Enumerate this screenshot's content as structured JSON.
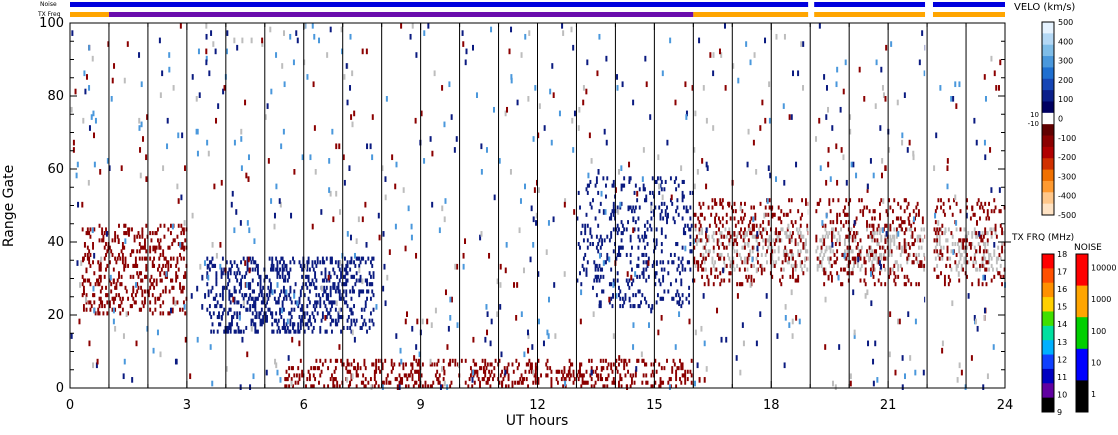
{
  "header": {
    "noise_label": "Noise",
    "txfrq_label": "TX Freq"
  },
  "chart_data": {
    "type": "heatmap",
    "xlabel": "UT hours",
    "ylabel": "Range Gate",
    "xlim": [
      0,
      24
    ],
    "ylim": [
      0,
      100
    ],
    "x_ticks": [
      "0",
      "3",
      "6",
      "9",
      "12",
      "15",
      "18",
      "21",
      "24"
    ],
    "y_ticks": [
      "0",
      "20",
      "40",
      "60",
      "80",
      "100"
    ],
    "vertical_lines_ut": [
      1,
      2,
      3,
      4,
      5,
      6,
      7,
      8,
      9,
      10,
      11,
      12,
      13,
      14,
      15,
      16,
      17,
      18,
      19,
      20,
      21,
      22,
      23
    ],
    "data_gaps_ut": [
      [
        18.95,
        19.1
      ],
      [
        21.95,
        22.15
      ]
    ],
    "scatter_regions": [
      {
        "name": "blue-blob-early",
        "color": "#0a1a80",
        "ut": [
          3.5,
          7.8
        ],
        "gates": [
          15,
          36
        ],
        "density": 0.7
      },
      {
        "name": "red-cluster-early",
        "color": "#8b0000",
        "ut": [
          0.3,
          3.0
        ],
        "gates": [
          20,
          45
        ],
        "density": 0.5
      },
      {
        "name": "red-band-bottom",
        "color": "#8b0000",
        "ut": [
          5.5,
          16.0
        ],
        "gates": [
          0,
          8
        ],
        "density": 0.55
      },
      {
        "name": "blue-arc-mid",
        "color": "#0a1a80",
        "ut": [
          13.0,
          16.0
        ],
        "gates": [
          22,
          58
        ],
        "density": 0.35
      },
      {
        "name": "gray-late",
        "color": "#bdbdbd",
        "ut": [
          16.0,
          24.0
        ],
        "gates": [
          32,
          44
        ],
        "density": 0.5
      },
      {
        "name": "red-late",
        "color": "#8b0000",
        "ut": [
          16.0,
          24.0
        ],
        "gates": [
          28,
          52
        ],
        "density": 0.35
      }
    ],
    "velocity_colorbar": {
      "title": "VELO (km/s)",
      "ticks": [
        "500",
        "400",
        "300",
        "200",
        "100",
        "0",
        "-100",
        "-200",
        "-300",
        "-400",
        "-500"
      ],
      "gray_labels": [
        "10",
        "-10"
      ],
      "colors": [
        "#e6f3ff",
        "#b4d8f5",
        "#7fbde8",
        "#4a98dc",
        "#1f6fd0",
        "#1646b5",
        "#0a1f8a",
        "#000060",
        "#ffffff",
        "#600000",
        "#8b0000",
        "#b00000",
        "#d03000",
        "#f07000",
        "#ff9a30",
        "#ffc78a",
        "#ffe3c4"
      ]
    },
    "txfrq_colorbar": {
      "title": "TX FRQ (MHz)",
      "ticks": [
        "18",
        "17",
        "16",
        "15",
        "14",
        "13",
        "12",
        "11",
        "10",
        "9"
      ],
      "colors": [
        "#ff0000",
        "#ff5000",
        "#ff9000",
        "#ffd000",
        "#40e000",
        "#00e0a0",
        "#00b0ff",
        "#1040ff",
        "#0000c0",
        "#6000a0",
        "#000000"
      ]
    },
    "noise_colorbar": {
      "title": "NOISE",
      "ticks": [
        "10000",
        "1000",
        "100",
        "10",
        "1"
      ],
      "colors": [
        "#ff0000",
        "#ffa500",
        "#00d000",
        "#0000ff",
        "#000000"
      ]
    },
    "status_bars": {
      "noise_color": "#0000dd",
      "txfreq_segments": [
        {
          "start": 0,
          "end": 1,
          "color": "#ffa500"
        },
        {
          "start": 1,
          "end": 16,
          "color": "#6a0dad"
        },
        {
          "start": 16,
          "end": 24,
          "color": "#ffa500"
        }
      ]
    }
  }
}
